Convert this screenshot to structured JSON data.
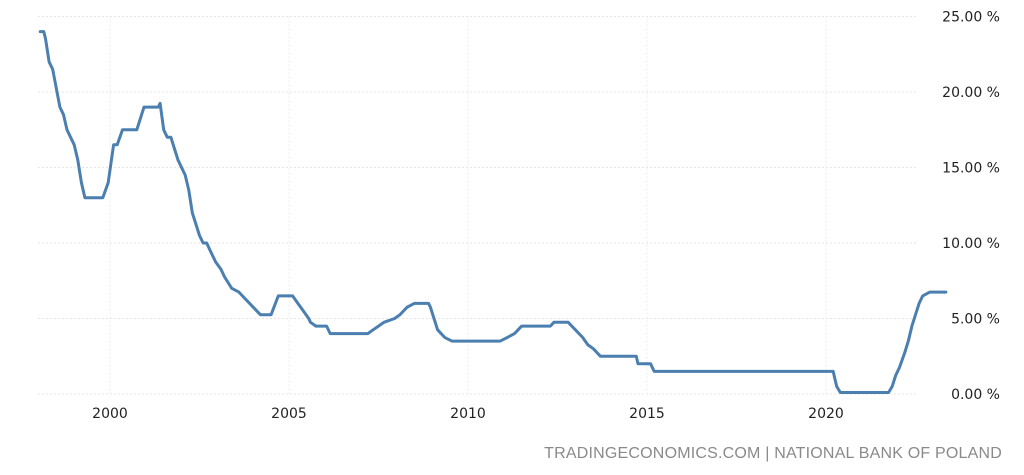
{
  "chart_data": {
    "type": "line",
    "title": "",
    "xlabel": "",
    "ylabel": "",
    "xlim": [
      1998,
      2023.6
    ],
    "ylim": [
      0,
      25
    ],
    "x_ticks": [
      2000,
      2005,
      2010,
      2015,
      2020
    ],
    "x_tick_labels": [
      "2000",
      "2005",
      "2010",
      "2015",
      "2020"
    ],
    "y_ticks": [
      0,
      5,
      10,
      15,
      20,
      25
    ],
    "y_tick_labels": [
      "0.00 %",
      "5.00 %",
      "10.00 %",
      "15.00 %",
      "20.00 %",
      "25.00 %"
    ],
    "y_axis_side": "right",
    "grid": true,
    "line_color": "#4a7fb0",
    "series": [
      {
        "x": [
          1998.05,
          1998.15,
          1998.2,
          1998.3,
          1998.4,
          1998.6,
          1998.7,
          1998.8,
          1999.0,
          1999.1,
          1999.2,
          1999.3,
          1999.35,
          1999.8,
          1999.95,
          2000.1,
          2000.2,
          2000.35,
          2000.75,
          2000.95,
          2001.35,
          2001.4,
          2001.5,
          2001.6,
          2001.7,
          2001.9,
          2002.1,
          2002.2,
          2002.3,
          2002.5,
          2002.6,
          2002.7,
          2002.8,
          2002.95,
          2003.1,
          2003.2,
          2003.4,
          2003.6,
          2003.8,
          2004.0,
          2004.2,
          2004.4,
          2004.5,
          2004.7,
          2005.1,
          2005.25,
          2005.4,
          2005.55,
          2005.6,
          2005.75,
          2006.05,
          2006.15,
          2007.2,
          2007.35,
          2007.5,
          2007.65,
          2007.95,
          2008.1,
          2008.2,
          2008.3,
          2008.5,
          2008.9,
          2008.95,
          2009.05,
          2009.15,
          2009.35,
          2009.55,
          2010.9,
          2011.1,
          2011.3,
          2011.4,
          2011.5,
          2012.3,
          2012.4,
          2012.8,
          2012.9,
          2013.0,
          2013.1,
          2013.2,
          2013.35,
          2013.5,
          2013.6,
          2013.7,
          2014.7,
          2014.75,
          2015.1,
          2015.2,
          2020.2,
          2020.25,
          2020.3,
          2020.4,
          2021.75,
          2021.85,
          2021.95,
          2022.05,
          2022.2,
          2022.3,
          2022.4,
          2022.5,
          2022.6,
          2022.7,
          2022.9,
          2023.35
        ],
        "y": [
          24,
          24,
          23.5,
          22,
          21.5,
          19,
          18.5,
          17.5,
          16.5,
          15.5,
          14,
          13,
          13,
          13,
          14,
          16.5,
          16.5,
          17.5,
          17.5,
          19,
          19,
          19.25,
          17.5,
          17,
          17,
          15.5,
          14.5,
          13.5,
          12,
          10.5,
          10,
          10,
          9.5,
          8.75,
          8.25,
          7.75,
          7,
          6.75,
          6.25,
          5.75,
          5.25,
          5.25,
          5.25,
          6.5,
          6.5,
          6,
          5.5,
          5,
          4.75,
          4.5,
          4.5,
          4,
          4,
          4.25,
          4.5,
          4.75,
          5,
          5.25,
          5.5,
          5.75,
          6,
          6,
          5.75,
          5,
          4.25,
          3.75,
          3.5,
          3.5,
          3.75,
          4,
          4.25,
          4.5,
          4.5,
          4.75,
          4.75,
          4.5,
          4.25,
          4,
          3.75,
          3.25,
          3,
          2.75,
          2.5,
          2.5,
          2,
          2,
          1.5,
          1.5,
          1,
          0.5,
          0.1,
          0.1,
          0.5,
          1.25,
          1.75,
          2.75,
          3.5,
          4.5,
          5.25,
          6,
          6.5,
          6.75,
          6.75
        ]
      }
    ]
  },
  "source": "TRADINGECONOMICS.COM | NATIONAL BANK OF POLAND"
}
